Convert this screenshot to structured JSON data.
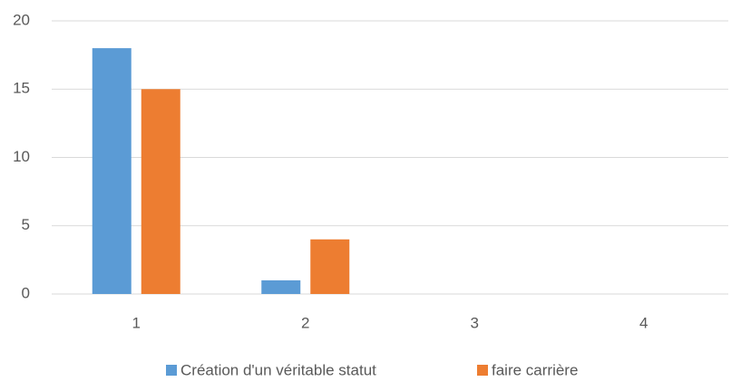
{
  "chart_data": {
    "type": "bar",
    "categories": [
      "1",
      "2",
      "3",
      "4"
    ],
    "series": [
      {
        "name": "Création d'un véritable statut",
        "color": "#5b9bd5",
        "values": [
          18,
          1,
          0,
          0
        ]
      },
      {
        "name": "faire carrière",
        "color": "#ed7d31",
        "values": [
          15,
          4,
          0,
          0
        ]
      }
    ],
    "ylim": [
      0,
      20
    ],
    "yticks": [
      0,
      5,
      10,
      15,
      20
    ],
    "grid": true,
    "legend": "bottom"
  }
}
